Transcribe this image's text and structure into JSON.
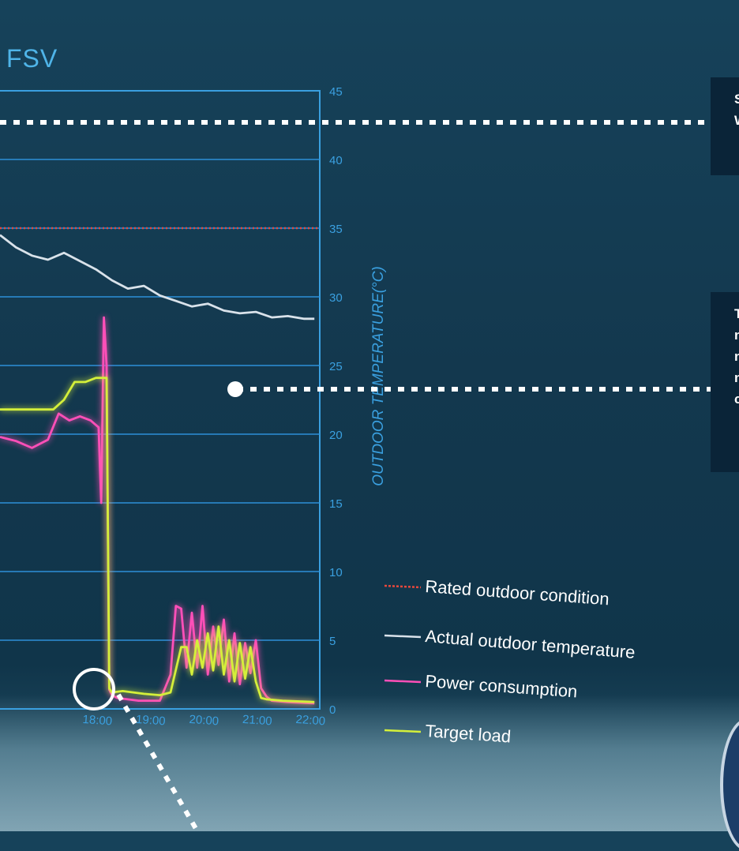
{
  "title": "FSV",
  "callouts": [
    {
      "lines": [
        "S",
        "W"
      ]
    },
    {
      "lines": [
        "T",
        "n",
        "n",
        "n",
        "c"
      ]
    }
  ],
  "chart_data": {
    "type": "line",
    "x_ticks": [
      "18:00",
      "19:00",
      "20:00",
      "21:00",
      "22:00"
    ],
    "ylabel_right": "OUTDOOR TEMPERATURE(°C)",
    "y_right_ticks": [
      0,
      5,
      10,
      15,
      20,
      25,
      30,
      35,
      40,
      45
    ],
    "ylim": [
      0,
      45
    ],
    "grid": true,
    "legend_position": "right",
    "series": [
      {
        "name": "Rated outdoor condition",
        "color": "#e8483c",
        "style": "dotted",
        "x": [
          16.0,
          22.0
        ],
        "y": [
          35,
          35
        ]
      },
      {
        "name": "Actual outdoor temperature",
        "color": "#d9e2ea",
        "style": "solid",
        "x": [
          16.0,
          16.3,
          16.6,
          16.9,
          17.2,
          17.5,
          17.8,
          18.1,
          18.4,
          18.7,
          19.0,
          19.3,
          19.6,
          19.9,
          20.2,
          20.5,
          20.8,
          21.1,
          21.4,
          21.7,
          21.9
        ],
        "y": [
          34.5,
          33.6,
          33.0,
          32.7,
          33.2,
          32.6,
          32.0,
          31.2,
          30.6,
          30.8,
          30.1,
          29.7,
          29.3,
          29.5,
          29.0,
          28.8,
          28.9,
          28.5,
          28.6,
          28.4,
          28.4
        ]
      },
      {
        "name": "Power consumption",
        "color": "#ff4fb8",
        "style": "solid",
        "x": [
          16.0,
          16.3,
          16.6,
          16.9,
          17.1,
          17.3,
          17.5,
          17.7,
          17.85,
          17.9,
          17.95,
          18.0,
          18.05,
          18.1,
          18.2,
          18.6,
          19.0,
          19.2,
          19.3,
          19.4,
          19.5,
          19.6,
          19.7,
          19.8,
          19.9,
          20.0,
          20.1,
          20.2,
          20.3,
          20.4,
          20.5,
          20.6,
          20.7,
          20.8,
          20.9,
          21.0,
          21.1,
          21.4,
          21.9
        ],
        "y": [
          19.8,
          19.5,
          19.0,
          19.6,
          21.5,
          21.0,
          21.3,
          21.0,
          20.5,
          15.0,
          28.5,
          25.0,
          1.4,
          1.0,
          0.8,
          0.6,
          0.6,
          2.5,
          7.5,
          7.3,
          3.0,
          7.0,
          3.0,
          7.5,
          2.5,
          6.0,
          3.2,
          6.5,
          2.0,
          5.5,
          1.8,
          4.8,
          2.6,
          5.0,
          1.5,
          0.9,
          0.6,
          0.5,
          0.4
        ]
      },
      {
        "name": "Target load",
        "color": "#d4ef3a",
        "style": "solid",
        "x": [
          16.0,
          16.5,
          17.0,
          17.2,
          17.4,
          17.6,
          17.8,
          17.9,
          18.0,
          18.05,
          18.1,
          18.3,
          18.7,
          19.0,
          19.2,
          19.4,
          19.5,
          19.6,
          19.7,
          19.8,
          19.9,
          20.0,
          20.1,
          20.2,
          20.3,
          20.4,
          20.5,
          20.6,
          20.7,
          20.8,
          20.9,
          21.0,
          21.3,
          21.9
        ],
        "y": [
          21.8,
          21.8,
          21.8,
          22.5,
          23.8,
          23.8,
          24.1,
          24.1,
          24.1,
          1.5,
          1.2,
          1.3,
          1.1,
          1.0,
          1.2,
          4.5,
          4.5,
          2.5,
          5.0,
          3.0,
          5.5,
          2.8,
          6.0,
          2.5,
          5.0,
          2.0,
          4.8,
          2.2,
          4.5,
          2.0,
          0.8,
          0.7,
          0.6,
          0.5
        ]
      }
    ]
  }
}
